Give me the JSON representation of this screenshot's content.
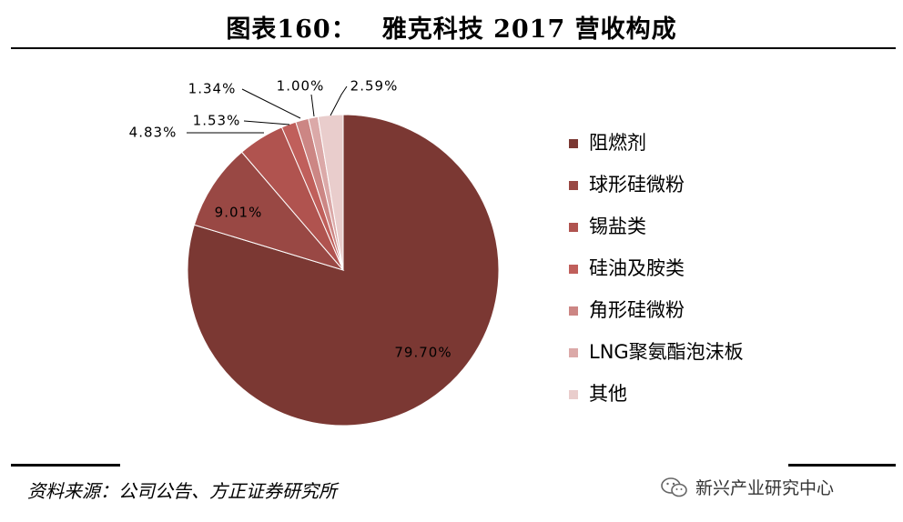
{
  "title": {
    "number": "图表160：",
    "text": "雅克科技 2017 营收构成"
  },
  "source": "资料来源：公司公告、方正证券研究所",
  "watermark": {
    "text": "新兴产业研究中心",
    "icon": "wechat-icon"
  },
  "chart_data": {
    "type": "pie",
    "title": "",
    "legend_position": "right",
    "start_angle": "12 o'clock, clockwise",
    "slices": [
      {
        "label": "阻燃剂",
        "value": 79.7,
        "display": "79.70%",
        "color": "#7b3833"
      },
      {
        "label": "球形硅微粉",
        "value": 9.01,
        "display": "9.01%",
        "color": "#994844"
      },
      {
        "label": "锡盐类",
        "value": 4.83,
        "display": "4.83%",
        "color": "#b0534f"
      },
      {
        "label": "硅油及胺类",
        "value": 1.53,
        "display": "1.53%",
        "color": "#c05f5b"
      },
      {
        "label": "角形硅微粉",
        "value": 1.34,
        "display": "1.34%",
        "color": "#cc8684"
      },
      {
        "label": "LNG聚氨酯泡沫板",
        "value": 1.0,
        "display": "1.00%",
        "color": "#dba9a8"
      },
      {
        "label": "其他",
        "value": 2.59,
        "display": "2.59%",
        "color": "#e9cdcc"
      }
    ]
  }
}
